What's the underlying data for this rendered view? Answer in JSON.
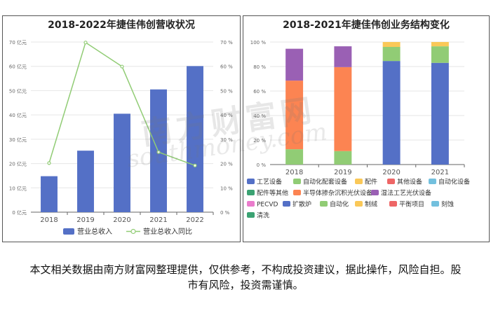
{
  "disclaimer": "本文相关数据由南方财富网整理提供，仅供参考，不构成投资建议，据此操作，风险自担。股市有风险，投资需谨慎。",
  "watermark": {
    "cn": "南方财富网",
    "en": "southmoney.com"
  },
  "chart_data": [
    {
      "type": "bar",
      "title": "2018-2022年捷佳伟创营收状况",
      "categories": [
        "2018",
        "2019",
        "2020",
        "2021",
        "2022"
      ],
      "series": [
        {
          "name": "营业总收入",
          "type": "bar",
          "color": "#5470c6",
          "axis": "left",
          "values": [
            14.8,
            25.3,
            40.5,
            50.5,
            60.1
          ]
        },
        {
          "name": "营业总收入同比",
          "type": "line",
          "color": "#91cc75",
          "axis": "right",
          "values": [
            20.2,
            69.8,
            59.9,
            24.7,
            19.2
          ]
        }
      ],
      "ylim_left": [
        0,
        70
      ],
      "ylim_right": [
        0,
        70
      ],
      "yticks_left": [
        "0 亿元",
        "10 亿元",
        "20 亿元",
        "30 亿元",
        "40 亿元",
        "50 亿元",
        "60 亿元",
        "70 亿元"
      ],
      "yticks_right": [
        "0 %",
        "10 %",
        "20 %",
        "30 %",
        "40 %",
        "50 %",
        "60 %",
        "70 %"
      ],
      "legend_position": "bottom"
    },
    {
      "type": "bar",
      "stacked": true,
      "title": "2018-2021年捷佳伟创业务结构变化",
      "categories": [
        "2018",
        "2019",
        "2020",
        "2021"
      ],
      "ylim": [
        0,
        100
      ],
      "yticks": [
        "0 %",
        "20 %",
        "40 %",
        "60 %",
        "80 %",
        "100 %"
      ],
      "series": [
        {
          "name": "工艺设备",
          "color": "#5470c6",
          "values": [
            0,
            0,
            84.5,
            83
          ]
        },
        {
          "name": "自动化配套设备",
          "color": "#91cc75",
          "values": [
            12.5,
            11,
            11.5,
            13.5
          ]
        },
        {
          "name": "配件",
          "color": "#fac858",
          "values": [
            0,
            0,
            4,
            3.5
          ]
        },
        {
          "name": "其他设备",
          "color": "#ee6666",
          "values": [
            0,
            0,
            0,
            0
          ]
        },
        {
          "name": "自动化设备",
          "color": "#73c0de",
          "values": [
            0,
            0,
            0,
            0
          ]
        },
        {
          "name": "配件等其他",
          "color": "#3ba272",
          "values": [
            0,
            0,
            0,
            0
          ]
        },
        {
          "name": "半导体掺杂沉积光伏设备",
          "color": "#fc8452",
          "values": [
            56,
            68.5,
            0,
            0
          ]
        },
        {
          "name": "湿法工艺光伏设备",
          "color": "#9a60b4",
          "values": [
            26,
            17,
            0,
            0
          ]
        },
        {
          "name": "PECVD",
          "color": "#ea7ccc",
          "values": [
            0,
            0,
            0,
            0
          ]
        },
        {
          "name": "扩散炉",
          "color": "#5470c6",
          "values": [
            0,
            0,
            0,
            0
          ]
        },
        {
          "name": "自动化",
          "color": "#91cc75",
          "values": [
            0,
            0,
            0,
            0
          ]
        },
        {
          "name": "制绒",
          "color": "#fac858",
          "values": [
            0,
            0,
            0,
            0
          ]
        },
        {
          "name": "平衡项目",
          "color": "#ee6666",
          "values": [
            0,
            0,
            0,
            0
          ]
        },
        {
          "name": "刻蚀",
          "color": "#73c0de",
          "values": [
            0,
            0,
            0,
            0
          ]
        },
        {
          "name": "清洗",
          "color": "#3ba272",
          "values": [
            0,
            0,
            0,
            0
          ]
        }
      ],
      "legend_position": "bottom"
    }
  ]
}
